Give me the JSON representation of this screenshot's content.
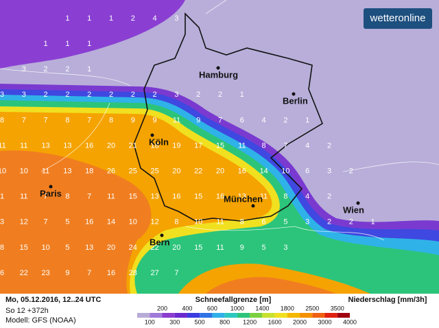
{
  "logo": "wetteronline",
  "cities": [
    "Hamburg",
    "Berlin",
    "Köln",
    "Paris",
    "München",
    "Bern",
    "Wien"
  ],
  "grid": [
    [
      null,
      null,
      null,
      1,
      1,
      1,
      2,
      4,
      3
    ],
    [
      null,
      null,
      1,
      1,
      1
    ],
    [
      null,
      3,
      2,
      2,
      1
    ],
    [
      3,
      3,
      2,
      2,
      2,
      2,
      2,
      2,
      3,
      2,
      2,
      1
    ],
    [
      8,
      7,
      7,
      8,
      7,
      8,
      9,
      9,
      11,
      9,
      7,
      6,
      4,
      2,
      1
    ],
    [
      11,
      11,
      13,
      13,
      16,
      20,
      21,
      18,
      19,
      17,
      15,
      11,
      8,
      7,
      4,
      2
    ],
    [
      10,
      10,
      11,
      13,
      18,
      26,
      25,
      25,
      20,
      22,
      20,
      16,
      14,
      10,
      6,
      3,
      2
    ],
    [
      1,
      11,
      7,
      8,
      7,
      11,
      15,
      13,
      16,
      15,
      16,
      13,
      11,
      8,
      4,
      2
    ],
    [
      3,
      12,
      7,
      5,
      16,
      14,
      10,
      12,
      8,
      10,
      11,
      8,
      6,
      5,
      3,
      2,
      2,
      1
    ],
    [
      8,
      15,
      10,
      5,
      13,
      20,
      24,
      22,
      20,
      15,
      11,
      9,
      5,
      3
    ],
    [
      6,
      22,
      23,
      9,
      7,
      16,
      28,
      27,
      7
    ]
  ],
  "footer": {
    "date": "Mo, 05.12.2016, 12..24 UTC",
    "run": "So 12 +372h",
    "model": "Modell: GFS (NOAA)"
  },
  "legend": {
    "snow_title": "Schneefallgrenze [m]",
    "precip_title": "Niederschlag [mm/3h]",
    "upper_labels": [
      200,
      400,
      600,
      1000,
      1400,
      1800,
      2500,
      3500
    ],
    "lower_labels": [
      100,
      300,
      500,
      800,
      1200,
      1600,
      2000,
      3000,
      4000
    ],
    "colors": [
      "#b7acd8",
      "#a07ad8",
      "#8a3ccf",
      "#6a2ad0",
      "#3a3ce0",
      "#2f72e6",
      "#2fb0e8",
      "#2cc8c0",
      "#2cc47a",
      "#7ad040",
      "#c8e030",
      "#f0e020",
      "#f5b800",
      "#f59000",
      "#f06010",
      "#e02010",
      "#a00010"
    ]
  }
}
